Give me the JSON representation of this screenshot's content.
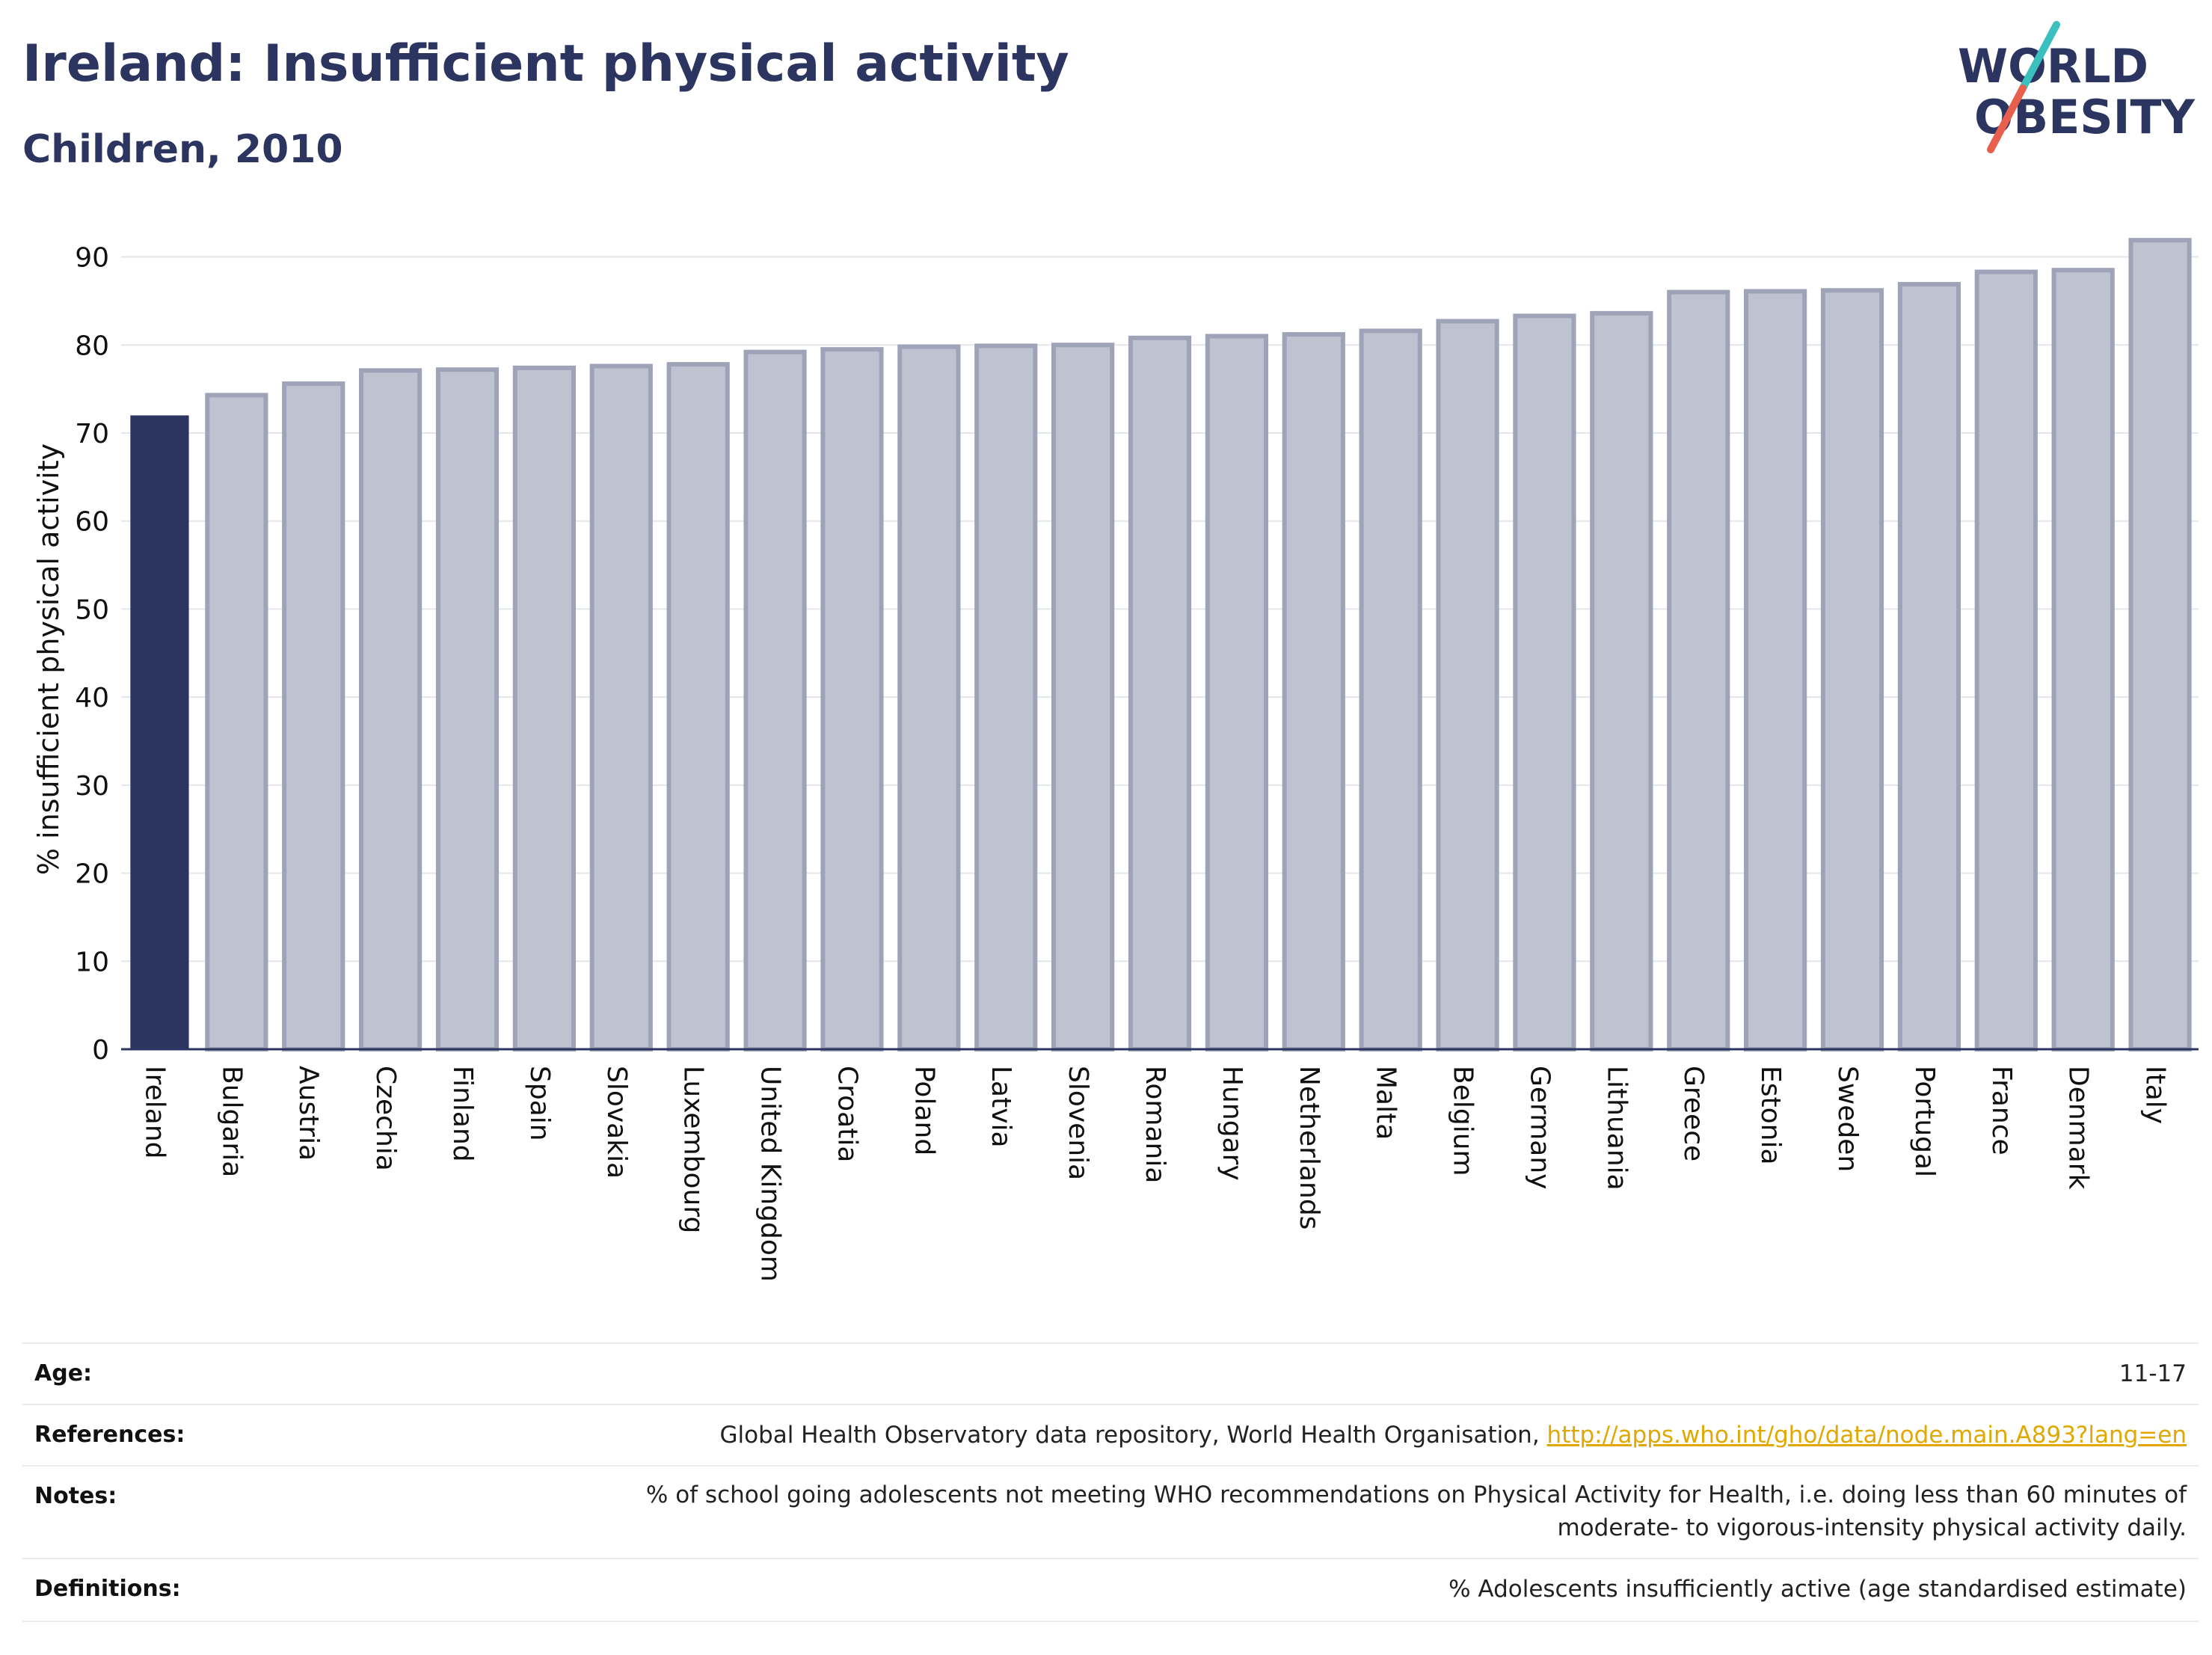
{
  "header": {
    "title": "Ireland: Insufficient physical activity",
    "subtitle": "Children, 2010"
  },
  "logo": {
    "line1": "WORLD",
    "line2": "OBESITY",
    "colors": {
      "text": "#2b3560",
      "slash_teal": "#3bbfbf",
      "slash_red": "#e8604c"
    }
  },
  "chart_data": {
    "type": "bar",
    "categories": [
      "Ireland",
      "Bulgaria",
      "Austria",
      "Czechia",
      "Finland",
      "Spain",
      "Slovakia",
      "Luxembourg",
      "United Kingdom",
      "Croatia",
      "Poland",
      "Latvia",
      "Slovenia",
      "Romania",
      "Hungary",
      "Netherlands",
      "Malta",
      "Belgium",
      "Germany",
      "Lithuania",
      "Greece",
      "Estonia",
      "Sweden",
      "Portugal",
      "France",
      "Denmark",
      "Italy"
    ],
    "values": [
      72,
      74.3,
      75.6,
      77.1,
      77.2,
      77.4,
      77.6,
      77.8,
      79.2,
      79.5,
      79.8,
      79.9,
      80.0,
      80.8,
      81.0,
      81.2,
      81.6,
      82.7,
      83.3,
      83.6,
      86.0,
      86.1,
      86.2,
      86.9,
      88.3,
      88.5,
      91.9
    ],
    "highlight": "Ireland",
    "ylabel": "% insufficient physical activity",
    "xlabel": "",
    "ylim": [
      0,
      92
    ],
    "yticks": [
      0,
      10,
      20,
      30,
      40,
      50,
      60,
      70,
      80,
      90
    ],
    "grid": true,
    "colors": {
      "highlight": "#2b3560",
      "other": "#bfc2d0",
      "other_stroke": "#9ea3b8",
      "grid": "#e4e6eb",
      "axis": "#2b3560"
    }
  },
  "info": {
    "rows": [
      {
        "label": "Age:",
        "value": "11-17"
      },
      {
        "label": "References:",
        "value": "Global Health Observatory data repository, World Health Organisation, ",
        "link": "http://apps.who.int/gho/data/node.main.A893?lang=en"
      },
      {
        "label": "Notes:",
        "value": "% of school going adolescents not meeting WHO recommendations on Physical Activity for Health, i.e. doing less than 60 minutes of",
        "value2": "moderate- to vigorous-intensity physical activity daily."
      },
      {
        "label": "Definitions:",
        "value": "% Adolescents insufficiently active (age standardised estimate)"
      }
    ]
  }
}
